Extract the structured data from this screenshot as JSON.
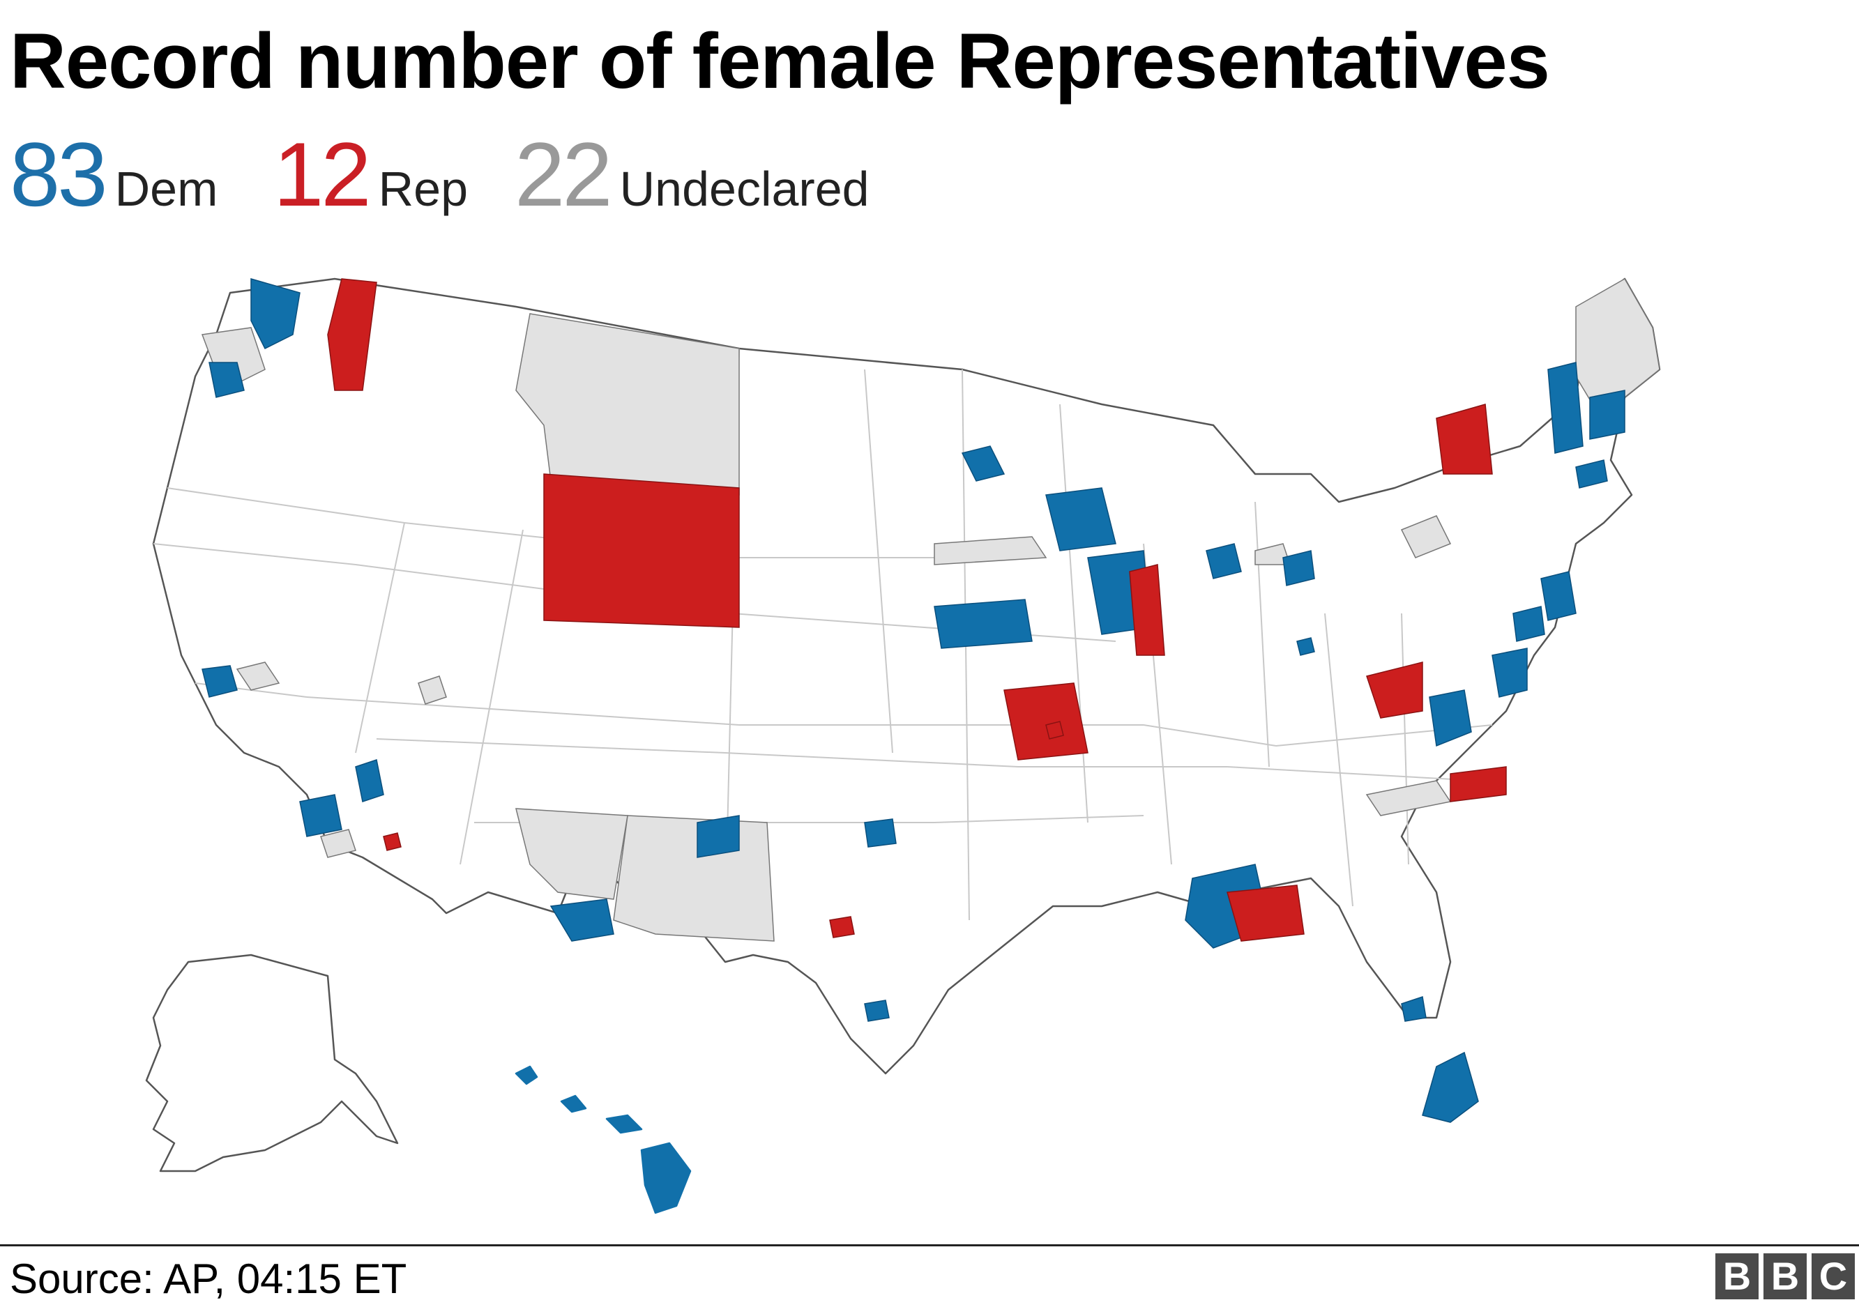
{
  "title": "Record number of female Representatives",
  "legend": {
    "dem": {
      "count": "83",
      "label": "Dem",
      "color": "#1d6fa9"
    },
    "rep": {
      "count": "12",
      "label": "Rep",
      "color": "#ca1f25"
    },
    "und": {
      "count": "22",
      "label": "Undeclared",
      "color": "#999999"
    }
  },
  "map": {
    "fill_colors": {
      "dem": "#1170aa",
      "rep": "#cc1e1e",
      "undeclared": "#e2e2e2",
      "none": "#ffffff"
    },
    "border_color": "#555555"
  },
  "source": "Source: AP, 04:15 ET",
  "logo": {
    "letters": [
      "B",
      "B",
      "C"
    ]
  }
}
